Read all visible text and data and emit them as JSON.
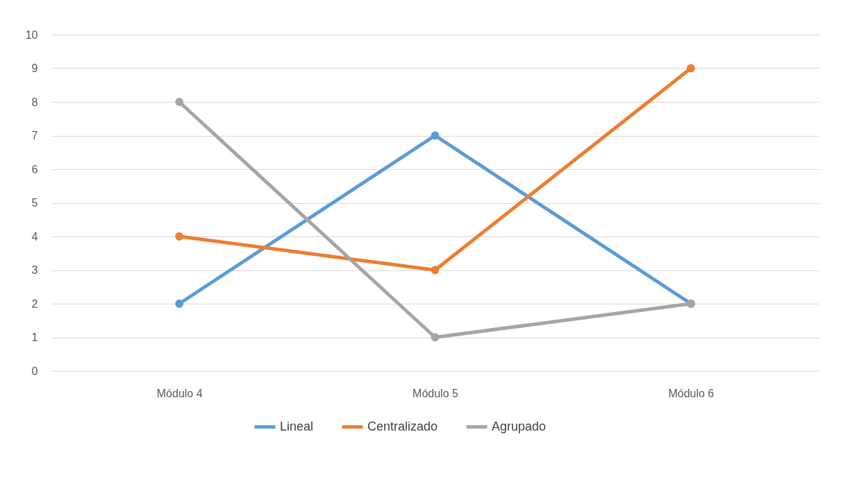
{
  "chart_data": {
    "type": "line",
    "categories": [
      "Módulo 4",
      "Módulo 5",
      "Módulo 6"
    ],
    "series": [
      {
        "name": "Lineal",
        "color": "#5b9bd5",
        "values": [
          2,
          7,
          2
        ]
      },
      {
        "name": "Centralizado",
        "color": "#ed7d31",
        "values": [
          4,
          3,
          9
        ]
      },
      {
        "name": "Agrupado",
        "color": "#a5a5a5",
        "values": [
          8,
          1,
          2
        ]
      }
    ],
    "ylim": [
      0,
      10
    ],
    "yticks": [
      0,
      1,
      2,
      3,
      4,
      5,
      6,
      7,
      8,
      9,
      10
    ],
    "grid": "y",
    "legend": "bottom",
    "marker": "circle",
    "line_style": "solid"
  }
}
